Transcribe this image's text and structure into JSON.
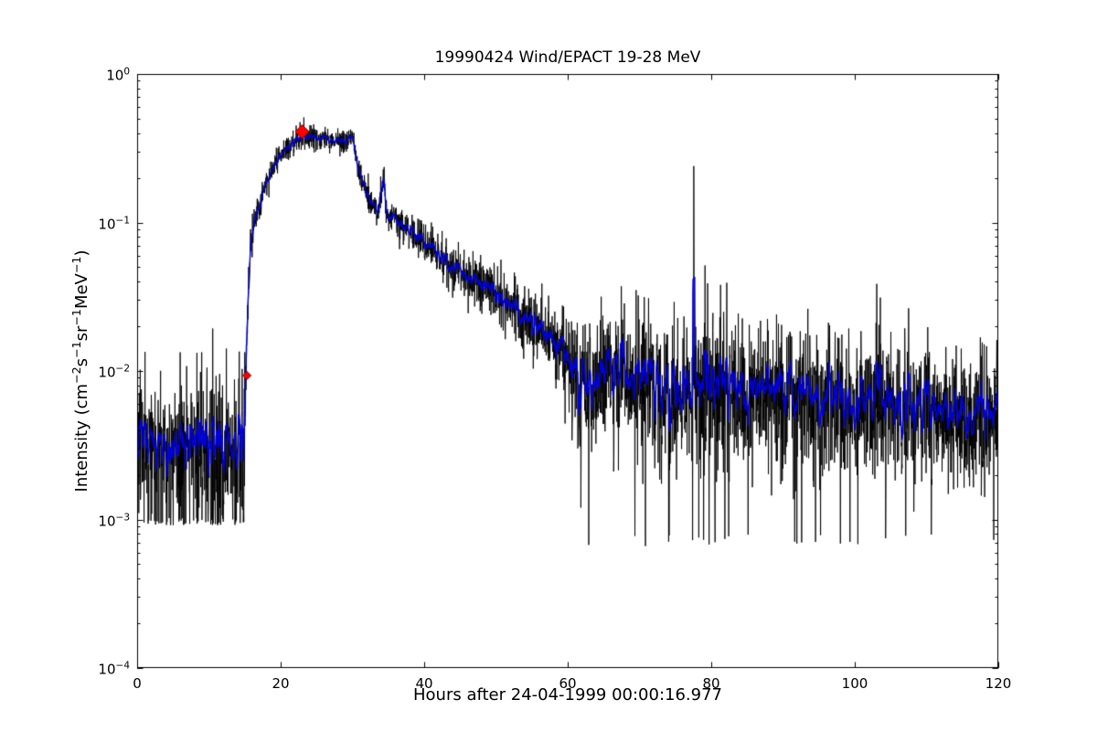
{
  "chart_data": {
    "type": "line",
    "title": "19990424 Wind/EPACT 19-28 MeV",
    "xlabel": "Hours after 24-04-1999 00:00:16.977",
    "ylabel": "Intensity (cm^-2 s^-1 sr^-1 MeV^-1)",
    "x_range": [
      0,
      120
    ],
    "x_ticks": [
      0,
      20,
      40,
      60,
      80,
      100,
      120
    ],
    "y_scale": "log",
    "y_range_exponents": [
      -4,
      0
    ],
    "y_tick_exponents": [
      0,
      -1,
      -2,
      -3,
      -4
    ],
    "grid": false,
    "legend": "none",
    "series": [
      {
        "name": "raw-intensity",
        "color": "#000000",
        "linewidth": 0.9
      },
      {
        "name": "smoothed-intensity",
        "color": "#0000dd",
        "linewidth": 1.4
      }
    ],
    "n_points": 3600,
    "smooth_window": 9,
    "profile_log10": [
      [
        0,
        -2.5
      ],
      [
        14.9,
        -2.5
      ],
      [
        15.15,
        -2.05
      ],
      [
        15.4,
        -1.55
      ],
      [
        15.8,
        -1.18
      ],
      [
        16.3,
        -1.0
      ],
      [
        17,
        -0.88
      ],
      [
        18,
        -0.74
      ],
      [
        19,
        -0.64
      ],
      [
        20,
        -0.54
      ],
      [
        21,
        -0.49
      ],
      [
        22,
        -0.45
      ],
      [
        23,
        -0.42
      ],
      [
        24,
        -0.42
      ],
      [
        25,
        -0.44
      ],
      [
        26,
        -0.42
      ],
      [
        27,
        -0.45
      ],
      [
        28,
        -0.43
      ],
      [
        29,
        -0.46
      ],
      [
        30,
        -0.45
      ],
      [
        30.6,
        -0.55
      ],
      [
        31,
        -0.68
      ],
      [
        31.5,
        -0.74
      ],
      [
        32,
        -0.78
      ],
      [
        32.5,
        -0.83
      ],
      [
        33,
        -0.88
      ],
      [
        33.6,
        -0.93
      ],
      [
        34.1,
        -0.78
      ],
      [
        34.4,
        -0.7
      ],
      [
        34.7,
        -0.93
      ],
      [
        35.5,
        -0.98
      ],
      [
        36.5,
        -1.0
      ],
      [
        38,
        -1.06
      ],
      [
        40,
        -1.13
      ],
      [
        42,
        -1.22
      ],
      [
        44,
        -1.3
      ],
      [
        46,
        -1.36
      ],
      [
        48,
        -1.43
      ],
      [
        50,
        -1.48
      ],
      [
        52,
        -1.55
      ],
      [
        54,
        -1.63
      ],
      [
        56,
        -1.71
      ],
      [
        57.5,
        -1.77
      ],
      [
        58.5,
        -1.83
      ],
      [
        59.3,
        -1.9
      ],
      [
        59.8,
        -2.0
      ],
      [
        60.5,
        -2.1
      ],
      [
        62,
        -2.1
      ],
      [
        64,
        -2.06
      ],
      [
        66,
        -2.0
      ],
      [
        67.5,
        -2.02
      ],
      [
        69,
        -2.08
      ],
      [
        71,
        -2.12
      ],
      [
        74,
        -2.13
      ],
      [
        78,
        -2.15
      ],
      [
        82,
        -2.16
      ],
      [
        86,
        -2.18
      ],
      [
        90,
        -2.2
      ],
      [
        95,
        -2.22
      ],
      [
        100,
        -2.24
      ],
      [
        105,
        -2.26
      ],
      [
        110,
        -2.28
      ],
      [
        115,
        -2.3
      ],
      [
        120,
        -2.32
      ]
    ],
    "noise": {
      "sigma_log10": [
        [
          0,
          0.27
        ],
        [
          14.9,
          0.27
        ],
        [
          15.3,
          0.08
        ],
        [
          16,
          0.045
        ],
        [
          30,
          0.04
        ],
        [
          35,
          0.05
        ],
        [
          45,
          0.08
        ],
        [
          55,
          0.11
        ],
        [
          59,
          0.13
        ],
        [
          60,
          0.22
        ],
        [
          62,
          0.25
        ],
        [
          120,
          0.25
        ]
      ],
      "floor_pre_t": 15.1,
      "floor_pre_prob": 0.09,
      "floor_pre_log": -3.04,
      "floor_post_t": 60.5,
      "floor_post_prob": 0.012,
      "floor_post_log": -3.1,
      "seed": 1337
    },
    "spikes": [
      {
        "t": 77.55,
        "points_log10": [
          -0.62,
          -1.15
        ]
      },
      {
        "t": 81.3,
        "points_log10": [
          -1.42
        ]
      }
    ],
    "markers": [
      {
        "x": 15.3,
        "y_log10": -2.03,
        "size": 4.5,
        "shape": "diamond",
        "label": "onset"
      },
      {
        "x": 23.0,
        "y_log10": -0.388,
        "size": 7.5,
        "shape": "diamond",
        "label": "peak"
      }
    ],
    "marker_color": "#ff0000",
    "marker_edge_color": "#880000"
  },
  "ylabel_segments": [
    [
      "Intensity (cm",
      0
    ],
    [
      "−2",
      1
    ],
    [
      "s",
      0
    ],
    [
      "−1",
      1
    ],
    [
      "sr",
      0
    ],
    [
      "−1",
      1
    ],
    [
      "MeV",
      0
    ],
    [
      "−1",
      1
    ],
    [
      ")",
      0
    ]
  ]
}
